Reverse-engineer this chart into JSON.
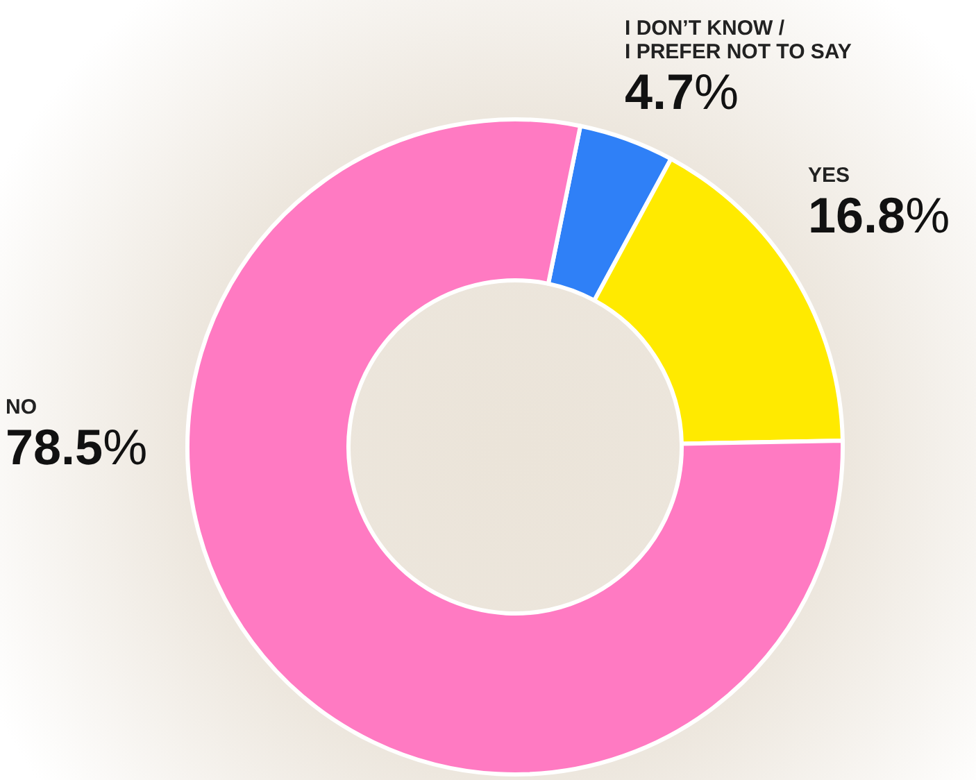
{
  "chart_data": {
    "type": "donut",
    "categories": [
      "I DON’T KNOW / I PREFER NOT TO SAY",
      "YES",
      "NO"
    ],
    "values": [
      4.7,
      16.8,
      78.5
    ],
    "colors": [
      "#2f80f7",
      "#ffea00",
      "#ff7ac2"
    ],
    "value_labels": [
      "4.7%",
      "16.8%",
      "78.5%"
    ],
    "legend": false
  }
}
